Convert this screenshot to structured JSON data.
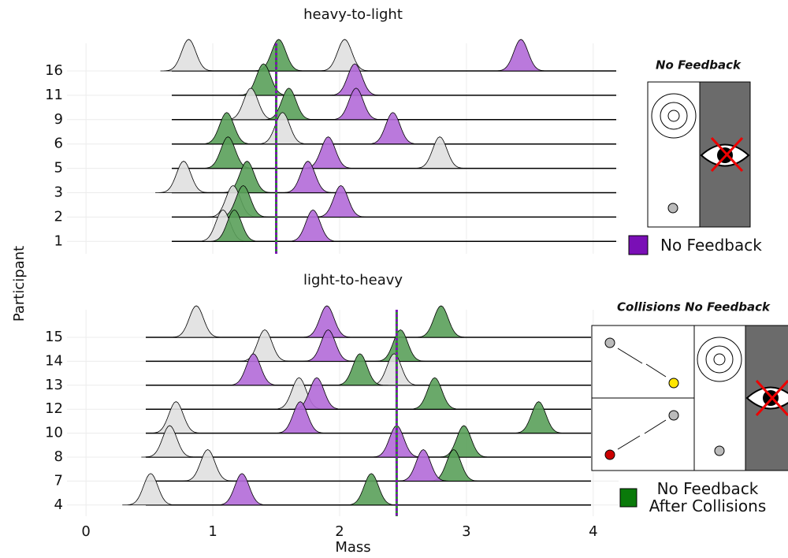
{
  "chart_data": [
    {
      "type": "ridgeline",
      "title": "heavy-to-light",
      "inset_title": "No Feedback",
      "categories": [
        "16",
        "11",
        "9",
        "6",
        "5",
        "3",
        "2",
        "1"
      ],
      "series": [
        {
          "color": "#e0e0e0",
          "values": [
            0.81,
            null,
            1.3,
            1.55,
            2.79,
            0.77,
            1.16,
            1.08
          ]
        },
        {
          "color": "#e0e0e0",
          "values": [
            2.04,
            null,
            null,
            null,
            null,
            null,
            null,
            null
          ]
        },
        {
          "color": "#5aa05a",
          "values": [
            1.52,
            1.4,
            1.6,
            1.11,
            1.12,
            1.27,
            1.24,
            1.17
          ]
        },
        {
          "color": "#b36ad8",
          "values": [
            3.43,
            2.12,
            2.13,
            2.42,
            1.91,
            1.75,
            2.01,
            1.79
          ]
        }
      ],
      "reference_line": 1.5,
      "xlim": [
        -0.15,
        4.2
      ],
      "legend": {
        "label": "No Feedback",
        "color": "#7a0fb6"
      }
    },
    {
      "type": "ridgeline",
      "title": "light-to-heavy",
      "inset_title": "Collisions No Feedback",
      "categories": [
        "15",
        "14",
        "13",
        "12",
        "10",
        "8",
        "7",
        "4"
      ],
      "series": [
        {
          "color": "#e0e0e0",
          "values": [
            0.87,
            1.41,
            2.43,
            1.68,
            0.71,
            0.66,
            0.96,
            0.51
          ]
        },
        {
          "color": "#5aa05a",
          "values": [
            2.8,
            2.48,
            2.16,
            2.75,
            3.57,
            2.98,
            2.9,
            2.25
          ]
        },
        {
          "color": "#b36ad8",
          "values": [
            1.9,
            1.91,
            1.32,
            1.82,
            1.69,
            2.45,
            2.66,
            1.23
          ]
        }
      ],
      "reference_line": 2.45,
      "xlim": [
        -0.15,
        4.2
      ],
      "xticks": [
        0,
        1,
        2,
        3,
        4
      ],
      "xlabel": "Mass",
      "ylabel": "Participant",
      "legend": {
        "label": "No Feedback After Collisions",
        "color": "#0a7a0a"
      }
    }
  ]
}
